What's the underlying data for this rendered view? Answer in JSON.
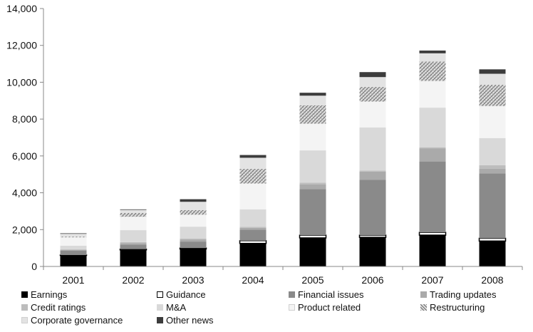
{
  "chart_data": {
    "type": "bar",
    "stacked": true,
    "categories": [
      "2001",
      "2002",
      "2003",
      "2004",
      "2005",
      "2006",
      "2007",
      "2008"
    ],
    "ylim": [
      0,
      14000
    ],
    "yticks": [
      0,
      2000,
      4000,
      6000,
      8000,
      10000,
      12000,
      14000
    ],
    "ytick_labels": [
      "0",
      "2,000",
      "4,000",
      "6,000",
      "8,000",
      "10,000",
      "12,000",
      "14,000"
    ],
    "grid": false,
    "legend_position": "bottom",
    "series": [
      {
        "name": "Earnings",
        "color": "#000000",
        "pattern": "solid",
        "values": [
          600,
          900,
          950,
          1250,
          1550,
          1580,
          1700,
          1380
        ]
      },
      {
        "name": "Guidance",
        "color": "#ffffff",
        "pattern": "outline",
        "values": [
          20,
          40,
          50,
          150,
          150,
          120,
          150,
          150
        ]
      },
      {
        "name": "Financial issues",
        "color": "#8a8a8a",
        "pattern": "solid",
        "values": [
          230,
          250,
          350,
          600,
          2500,
          3000,
          3850,
          3520
        ]
      },
      {
        "name": "Trading updates",
        "color": "#aaaaaa",
        "pattern": "solid",
        "values": [
          50,
          80,
          100,
          100,
          250,
          450,
          700,
          250
        ]
      },
      {
        "name": "Credit ratings",
        "color": "#bdbdbd",
        "pattern": "solid",
        "values": [
          30,
          50,
          60,
          50,
          100,
          50,
          70,
          200
        ]
      },
      {
        "name": "M&A",
        "color": "#d9d9d9",
        "pattern": "solid",
        "values": [
          200,
          650,
          650,
          950,
          1750,
          2350,
          2150,
          1470
        ]
      },
      {
        "name": "Product related",
        "color": "#f4f4f4",
        "pattern": "solid",
        "values": [
          450,
          730,
          650,
          1400,
          1450,
          1400,
          1450,
          1740
        ]
      },
      {
        "name": "Restructuring",
        "color": "#cfcfcf",
        "pattern": "hatch",
        "values": [
          50,
          200,
          250,
          800,
          1000,
          800,
          1050,
          1150
        ]
      },
      {
        "name": "Corporate governance",
        "color": "#e3e3e3",
        "pattern": "solid",
        "values": [
          140,
          170,
          450,
          600,
          520,
          530,
          450,
          600
        ]
      },
      {
        "name": "Other news",
        "color": "#3c3c3c",
        "pattern": "solid",
        "values": [
          30,
          30,
          140,
          150,
          160,
          270,
          150,
          240
        ]
      }
    ]
  }
}
